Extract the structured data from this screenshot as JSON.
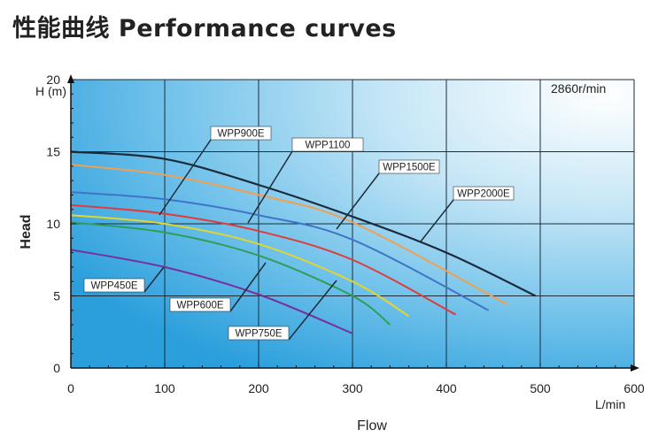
{
  "title": "性能曲线 Performance curves",
  "chart_data": {
    "type": "line",
    "ylabel": "Head",
    "y_unit": "H (m)",
    "xlabel": "Flow",
    "x_unit": "L/min",
    "speed": "2860r/min",
    "xlim": [
      0,
      600
    ],
    "ylim": [
      0,
      20
    ],
    "xticks": [
      0,
      100,
      200,
      300,
      400,
      500,
      600
    ],
    "yticks": [
      0,
      5,
      10,
      15,
      20
    ],
    "grid": true,
    "series": [
      {
        "name": "WPP450E",
        "color": "#7a2f9e",
        "x": [
          0,
          100,
          200,
          300
        ],
        "y": [
          8.2,
          7.0,
          5.1,
          2.4
        ]
      },
      {
        "name": "WPP600E",
        "color": "#2e9e57",
        "x": [
          0,
          100,
          200,
          300,
          340
        ],
        "y": [
          10.1,
          9.4,
          7.8,
          5.0,
          3.0
        ]
      },
      {
        "name": "WPP750E",
        "color": "#e3d52e",
        "x": [
          0,
          100,
          200,
          300,
          360
        ],
        "y": [
          10.6,
          10.0,
          8.6,
          6.0,
          3.6
        ]
      },
      {
        "name": "WPP900E",
        "color": "#e23a3a",
        "x": [
          0,
          100,
          200,
          300,
          410
        ],
        "y": [
          11.3,
          10.7,
          9.5,
          7.5,
          3.7
        ]
      },
      {
        "name": "WPP1100",
        "color": "#3f74c9",
        "x": [
          0,
          100,
          200,
          300,
          445
        ],
        "y": [
          12.2,
          11.7,
          10.6,
          8.9,
          4.0
        ]
      },
      {
        "name": "WPP1500E",
        "color": "#f0a050",
        "x": [
          0,
          100,
          200,
          300,
          465
        ],
        "y": [
          14.1,
          13.4,
          12.0,
          10.1,
          4.4
        ]
      },
      {
        "name": "WPP2000E",
        "color": "#1c2a3a",
        "x": [
          0,
          100,
          200,
          300,
          400,
          495
        ],
        "y": [
          15.0,
          14.5,
          12.7,
          10.5,
          8.0,
          5.0
        ]
      }
    ],
    "labels": [
      {
        "text": "WPP900E",
        "series": "WPP900E"
      },
      {
        "text": "WPP1100",
        "series": "WPP1100"
      },
      {
        "text": "WPP1500E",
        "series": "WPP1500E"
      },
      {
        "text": "WPP2000E",
        "series": "WPP2000E"
      },
      {
        "text": "WPP450E",
        "series": "WPP450E"
      },
      {
        "text": "WPP600E",
        "series": "WPP600E"
      },
      {
        "text": "WPP750E",
        "series": "WPP750E"
      }
    ]
  }
}
